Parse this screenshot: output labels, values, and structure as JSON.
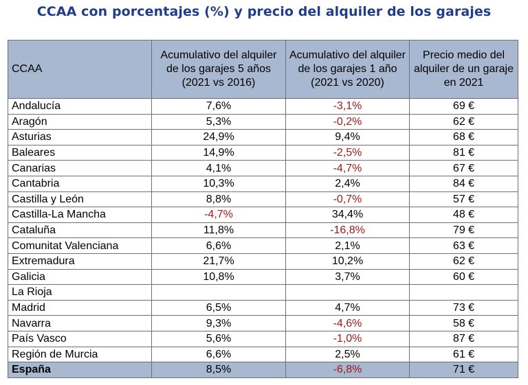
{
  "title": "CCAA con porcentajes (%) y precio del alquiler de los garajes",
  "colors": {
    "title": "#1f3d8a",
    "header_bg": "#a8b8d0",
    "negative": "#a11818"
  },
  "table": {
    "headers": [
      "CCAA",
      "Acumulativo del alquiler de los garajes 5 años (2021 vs 2016)",
      "Acumulativo del alquiler de los garajes 1 año (2021 vs 2020)",
      "Precio medio del alquiler de un garaje en 2021"
    ],
    "rows": [
      [
        "Andalucía",
        "7,6%",
        "-3,1%",
        "69 €"
      ],
      [
        "Aragón",
        "5,3%",
        "-0,2%",
        "62 €"
      ],
      [
        "Asturias",
        "24,9%",
        "9,4%",
        "68 €"
      ],
      [
        "Baleares",
        "14,9%",
        "-2,5%",
        "81 €"
      ],
      [
        "Canarias",
        "4,1%",
        "-4,7%",
        "67 €"
      ],
      [
        "Cantabria",
        "10,3%",
        "2,4%",
        "84 €"
      ],
      [
        "Castilla y León",
        "8,8%",
        "-0,7%",
        "57 €"
      ],
      [
        "Castilla-La Mancha",
        "-4,7%",
        "34,4%",
        "48 €"
      ],
      [
        "Cataluña",
        "11,8%",
        "-16,8%",
        "79 €"
      ],
      [
        "Comunitat Valenciana",
        "6,6%",
        "2,1%",
        "63 €"
      ],
      [
        "Extremadura",
        "21,7%",
        "10,2%",
        "62 €"
      ],
      [
        "Galicia",
        "10,8%",
        "3,7%",
        "60 €"
      ],
      [
        "La Rioja",
        "",
        "",
        ""
      ],
      [
        "Madrid",
        "6,5%",
        "4,7%",
        "73 €"
      ],
      [
        "Navarra",
        "9,3%",
        "-4,6%",
        "58 €"
      ],
      [
        "País Vasco",
        "5,6%",
        "-1,0%",
        "87 €"
      ],
      [
        "Región de Murcia",
        "6,6%",
        "2,5%",
        "61 €"
      ]
    ],
    "total": [
      "España",
      "8,5%",
      "-6,8%",
      "71 €"
    ]
  }
}
